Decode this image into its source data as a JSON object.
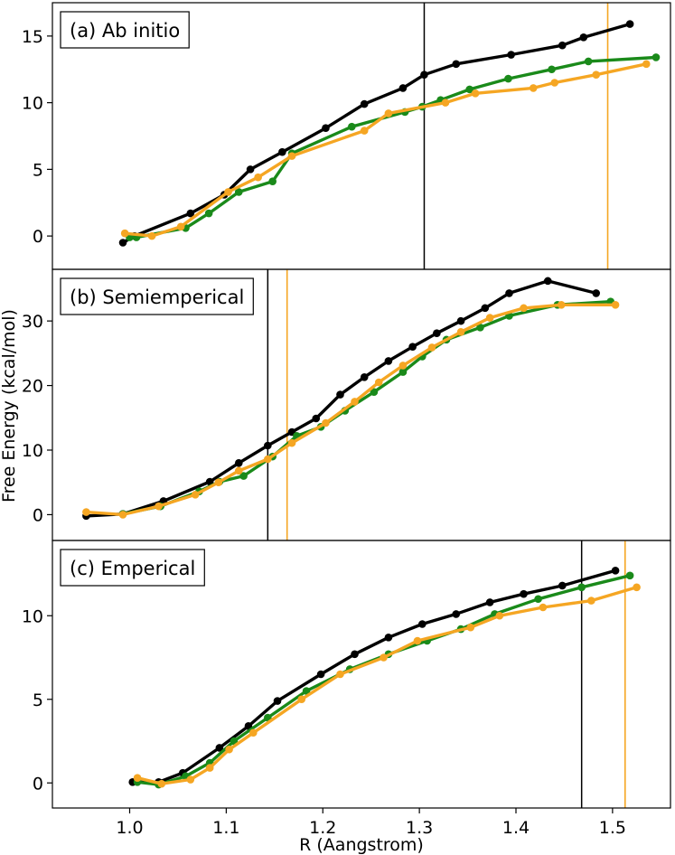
{
  "figure": {
    "xlabel": "R (Aangstrom)",
    "ylabel": "Free Energy (kcal/mol)",
    "xticks": [
      1.0,
      1.1,
      1.2,
      1.3,
      1.4,
      1.5
    ],
    "xtick_labels": [
      "1.0",
      "1.1",
      "1.2",
      "1.3",
      "1.4",
      "1.5"
    ],
    "xlim": [
      0.92,
      1.56
    ]
  },
  "colors": {
    "black": "#000000",
    "green": "#1a8a1a",
    "orange": "#f5a623"
  },
  "chart_data": [
    {
      "type": "line",
      "title": "(a) Ab initio",
      "ylim": [
        -2.5,
        17.5
      ],
      "yticks": [
        0,
        5,
        10,
        15
      ],
      "ytick_labels": [
        "0",
        "5",
        "10",
        "15"
      ],
      "vlines": [
        {
          "x": 1.305,
          "color": "black"
        },
        {
          "x": 1.495,
          "color": "orange"
        }
      ],
      "series": [
        {
          "name": "black",
          "color": "black",
          "x": [
            0.993,
            1.005,
            1.063,
            1.098,
            1.125,
            1.158,
            1.203,
            1.243,
            1.283,
            1.305,
            1.338,
            1.395,
            1.448,
            1.47,
            1.518
          ],
          "y": [
            -0.5,
            0,
            1.7,
            3.1,
            5.0,
            6.3,
            8.1,
            9.9,
            11.1,
            12.1,
            12.9,
            13.6,
            14.3,
            14.9,
            15.9
          ]
        },
        {
          "name": "green",
          "color": "green",
          "x": [
            1.0,
            1.007,
            1.058,
            1.082,
            1.113,
            1.148,
            1.168,
            1.23,
            1.285,
            1.303,
            1.322,
            1.352,
            1.392,
            1.437,
            1.475,
            1.545
          ],
          "y": [
            -0.1,
            -0.1,
            0.6,
            1.7,
            3.3,
            4.1,
            6.2,
            8.2,
            9.3,
            9.7,
            10.2,
            11.0,
            11.8,
            12.5,
            13.1,
            13.4
          ]
        },
        {
          "name": "orange",
          "color": "orange",
          "x": [
            0.995,
            1.023,
            1.053,
            1.102,
            1.133,
            1.168,
            1.243,
            1.268,
            1.327,
            1.358,
            1.418,
            1.44,
            1.483,
            1.535
          ],
          "y": [
            0.2,
            0.0,
            0.7,
            3.3,
            4.4,
            6.0,
            7.9,
            9.2,
            10.0,
            10.7,
            11.1,
            11.5,
            12.1,
            12.9
          ]
        }
      ]
    },
    {
      "type": "line",
      "title": "(b) Semiemperical",
      "ylim": [
        -4,
        38
      ],
      "yticks": [
        0,
        10,
        20,
        30
      ],
      "ytick_labels": [
        "0",
        "10",
        "20",
        "30"
      ],
      "vlines": [
        {
          "x": 1.143,
          "color": "black"
        },
        {
          "x": 1.163,
          "color": "orange"
        }
      ],
      "series": [
        {
          "name": "black",
          "color": "black",
          "x": [
            0.955,
            0.993,
            1.035,
            1.083,
            1.113,
            1.143,
            1.168,
            1.193,
            1.218,
            1.243,
            1.268,
            1.293,
            1.318,
            1.343,
            1.368,
            1.393,
            1.433,
            1.483
          ],
          "y": [
            -0.2,
            0.1,
            2.1,
            5.1,
            8.0,
            10.7,
            12.8,
            14.9,
            18.6,
            21.3,
            23.8,
            26.0,
            28.1,
            30.0,
            32.0,
            34.3,
            36.2,
            34.3
          ]
        },
        {
          "name": "green",
          "color": "green",
          "x": [
            0.993,
            1.032,
            1.072,
            1.093,
            1.118,
            1.148,
            1.173,
            1.198,
            1.223,
            1.253,
            1.283,
            1.303,
            1.328,
            1.363,
            1.393,
            1.443,
            1.498
          ],
          "y": [
            0.1,
            1.3,
            3.6,
            5.1,
            6.0,
            9.0,
            12.2,
            13.6,
            16.1,
            19.0,
            22.1,
            24.5,
            27.1,
            29.0,
            30.8,
            32.5,
            33.0
          ]
        },
        {
          "name": "orange",
          "color": "orange",
          "x": [
            0.955,
            0.993,
            1.03,
            1.068,
            1.092,
            1.113,
            1.143,
            1.168,
            1.203,
            1.233,
            1.258,
            1.283,
            1.313,
            1.343,
            1.373,
            1.408,
            1.447,
            1.503
          ],
          "y": [
            0.4,
            0.0,
            1.3,
            3.1,
            5.0,
            6.8,
            8.6,
            11.1,
            14.2,
            17.5,
            20.5,
            23.1,
            25.9,
            28.3,
            30.5,
            32.0,
            32.5,
            32.5
          ]
        }
      ]
    },
    {
      "type": "line",
      "title": "(c) Emperical",
      "ylim": [
        -1.5,
        14.5
      ],
      "yticks": [
        0,
        5,
        10
      ],
      "ytick_labels": [
        "0",
        "5",
        "10"
      ],
      "vlines": [
        {
          "x": 1.468,
          "color": "black"
        },
        {
          "x": 1.513,
          "color": "orange"
        }
      ],
      "series": [
        {
          "name": "black",
          "color": "black",
          "x": [
            1.003,
            1.03,
            1.055,
            1.093,
            1.123,
            1.153,
            1.198,
            1.233,
            1.268,
            1.303,
            1.338,
            1.373,
            1.408,
            1.448,
            1.503
          ],
          "y": [
            0.05,
            0.05,
            0.6,
            2.1,
            3.4,
            4.9,
            6.5,
            7.7,
            8.7,
            9.5,
            10.1,
            10.8,
            11.3,
            11.8,
            12.7
          ]
        },
        {
          "name": "green",
          "color": "green",
          "x": [
            1.008,
            1.03,
            1.058,
            1.083,
            1.108,
            1.143,
            1.183,
            1.228,
            1.268,
            1.308,
            1.343,
            1.378,
            1.423,
            1.468,
            1.518
          ],
          "y": [
            0.05,
            -0.1,
            0.4,
            1.2,
            2.5,
            3.9,
            5.5,
            6.8,
            7.7,
            8.5,
            9.2,
            10.1,
            11.0,
            11.7,
            12.4
          ]
        },
        {
          "name": "orange",
          "color": "orange",
          "x": [
            1.008,
            1.033,
            1.063,
            1.083,
            1.103,
            1.128,
            1.178,
            1.218,
            1.263,
            1.298,
            1.353,
            1.383,
            1.428,
            1.478,
            1.525
          ],
          "y": [
            0.3,
            -0.05,
            0.2,
            0.9,
            2.0,
            3.0,
            5.0,
            6.5,
            7.5,
            8.5,
            9.3,
            10.0,
            10.5,
            10.9,
            11.7
          ]
        }
      ]
    }
  ]
}
